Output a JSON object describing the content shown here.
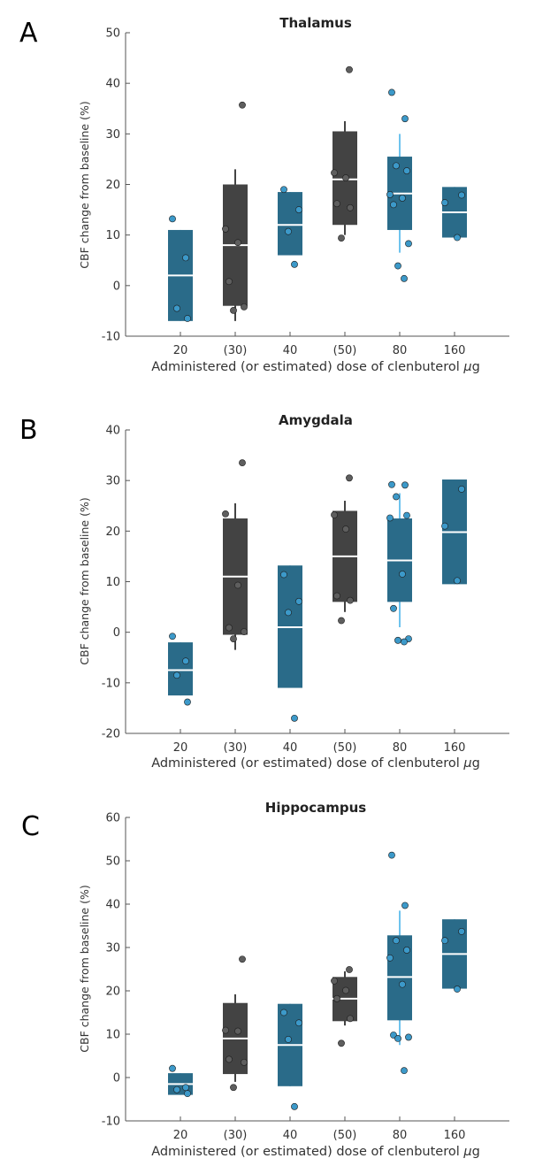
{
  "colors": {
    "gray_box": "#434343",
    "blue_box": "#2a6b89",
    "gray_dot": "#5e5e5e",
    "blue_dot": "#3c99c9",
    "light_blue_whisker": "#6ec3ee",
    "median": "#ffffff"
  },
  "chart_data": [
    {
      "panel": "A",
      "type": "box",
      "title": "Thalamus",
      "ylabel": "CBF change from baseline (%)",
      "xlabel": "Administered (or estimated) dose of clenbuterol µg",
      "xlabel_prefix": "Administered (or estimated) dose of clenbuterol ",
      "xlabel_mu": "µ",
      "xlabel_unit": "g",
      "ylim": [
        -10,
        50
      ],
      "yticks": [
        -10,
        0,
        10,
        20,
        30,
        40,
        50
      ],
      "categories": [
        "20",
        "(30)",
        "40",
        "(50)",
        "80",
        "160"
      ],
      "boxes": [
        {
          "q1": -7,
          "median": 2,
          "q3": 11,
          "whisker_low": -7,
          "whisker_high": 11,
          "group": "measured",
          "points": [
            13.2,
            5.5,
            -4.5,
            -6.5
          ]
        },
        {
          "q1": -4,
          "median": 8,
          "q3": 20,
          "whisker_low": -7,
          "whisker_high": 23,
          "group": "estimated",
          "points": [
            35.7,
            11.2,
            8.5,
            0.8,
            -4.2,
            -4.9
          ]
        },
        {
          "q1": 6,
          "median": 12,
          "q3": 18.5,
          "whisker_low": 6,
          "whisker_high": 18.5,
          "group": "measured",
          "points": [
            19,
            15,
            10.7,
            4.2
          ]
        },
        {
          "q1": 12,
          "median": 21,
          "q3": 30.5,
          "whisker_low": 10,
          "whisker_high": 32.5,
          "group": "estimated",
          "points": [
            42.7,
            22.3,
            21.3,
            16.2,
            15.4,
            9.4
          ]
        },
        {
          "q1": 11,
          "median": 18.2,
          "q3": 25.5,
          "whisker_low": 6.5,
          "whisker_high": 30,
          "group": "measured",
          "points": [
            38.2,
            33,
            23.7,
            22.7,
            18,
            17.3,
            16,
            8.3,
            3.9,
            1.4
          ]
        },
        {
          "q1": 9.5,
          "median": 14.5,
          "q3": 19.5,
          "whisker_low": 9.5,
          "whisker_high": 19.5,
          "group": "measured",
          "points": [
            17.9,
            16.4,
            9.5
          ]
        }
      ]
    },
    {
      "panel": "B",
      "type": "box",
      "title": "Amygdala",
      "ylabel": "CBF change from baseline (%)",
      "xlabel": "Administered (or estimated) dose of clenbuterol µg",
      "xlabel_prefix": "Administered (or estimated) dose of clenbuterol ",
      "xlabel_mu": "µ",
      "xlabel_unit": "g",
      "ylim": [
        -20,
        40
      ],
      "yticks": [
        -20,
        -10,
        0,
        10,
        20,
        30,
        40
      ],
      "categories": [
        "20",
        "(30)",
        "40",
        "(50)",
        "80",
        "160"
      ],
      "boxes": [
        {
          "q1": -12.5,
          "median": -7.5,
          "q3": -2,
          "whisker_low": -12.5,
          "whisker_high": -2,
          "group": "measured",
          "points": [
            -0.8,
            -5.7,
            -8.5,
            -13.8
          ]
        },
        {
          "q1": -0.5,
          "median": 11,
          "q3": 22.5,
          "whisker_low": -3.5,
          "whisker_high": 25.5,
          "group": "estimated",
          "points": [
            33.5,
            23.4,
            9.3,
            0.9,
            0.1,
            -1.3
          ]
        },
        {
          "q1": -11,
          "median": 1,
          "q3": 13.2,
          "whisker_low": -11,
          "whisker_high": 13.2,
          "group": "measured",
          "points": [
            11.4,
            6.1,
            3.9,
            -17
          ]
        },
        {
          "q1": 6,
          "median": 15,
          "q3": 24,
          "whisker_low": 4,
          "whisker_high": 26,
          "group": "estimated",
          "points": [
            30.5,
            23.2,
            20.4,
            7.2,
            6.3,
            2.3
          ]
        },
        {
          "q1": 6,
          "median": 14.2,
          "q3": 22.5,
          "whisker_low": 1,
          "whisker_high": 27.5,
          "group": "measured",
          "points": [
            29.2,
            29.1,
            26.8,
            23.1,
            22.6,
            11.5,
            4.7,
            -1.3,
            -1.6,
            -1.9
          ]
        },
        {
          "q1": 9.5,
          "median": 19.8,
          "q3": 30.2,
          "whisker_low": 9.5,
          "whisker_high": 30.2,
          "group": "measured",
          "points": [
            28.3,
            21,
            10.2
          ]
        }
      ]
    },
    {
      "panel": "C",
      "type": "box",
      "title": "Hippocampus",
      "ylabel": "CBF change from baseline (%)",
      "xlabel": "Administered (or estimated) dose of clenbuterol µg",
      "xlabel_prefix": "Administered (or estimated) dose of clenbuterol ",
      "xlabel_mu": "µ",
      "xlabel_unit": "g",
      "ylim": [
        -10,
        60
      ],
      "yticks": [
        -10,
        0,
        10,
        20,
        30,
        40,
        50,
        60
      ],
      "categories": [
        "20",
        "(30)",
        "40",
        "(50)",
        "80",
        "160"
      ],
      "boxes": [
        {
          "q1": -4,
          "median": -1.5,
          "q3": 1,
          "whisker_low": -4,
          "whisker_high": 1,
          "group": "measured",
          "points": [
            2.1,
            -2.3,
            -2.8,
            -3.7
          ]
        },
        {
          "q1": 0.8,
          "median": 9,
          "q3": 17.2,
          "whisker_low": -1,
          "whisker_high": 19.2,
          "group": "estimated",
          "points": [
            27.3,
            10.9,
            10.7,
            4.2,
            3.5,
            -2.3
          ]
        },
        {
          "q1": -2,
          "median": 7.5,
          "q3": 17,
          "whisker_low": -2,
          "whisker_high": 17,
          "group": "measured",
          "points": [
            15,
            12.6,
            8.8,
            -6.7
          ]
        },
        {
          "q1": 13,
          "median": 18.2,
          "q3": 23.2,
          "whisker_low": 12,
          "whisker_high": 24.5,
          "group": "estimated",
          "points": [
            24.9,
            22.3,
            20.1,
            18.2,
            13.6,
            7.9
          ]
        },
        {
          "q1": 13.2,
          "median": 23.2,
          "q3": 32.8,
          "whisker_low": 7.5,
          "whisker_high": 38.5,
          "group": "measured",
          "points": [
            51.3,
            39.7,
            31.6,
            29.4,
            27.6,
            21.5,
            9.8,
            9.3,
            9,
            1.6
          ]
        },
        {
          "q1": 20.5,
          "median": 28.5,
          "q3": 36.5,
          "whisker_low": 20.5,
          "whisker_high": 36.5,
          "group": "measured",
          "points": [
            33.7,
            31.6,
            20.4
          ]
        }
      ]
    }
  ]
}
